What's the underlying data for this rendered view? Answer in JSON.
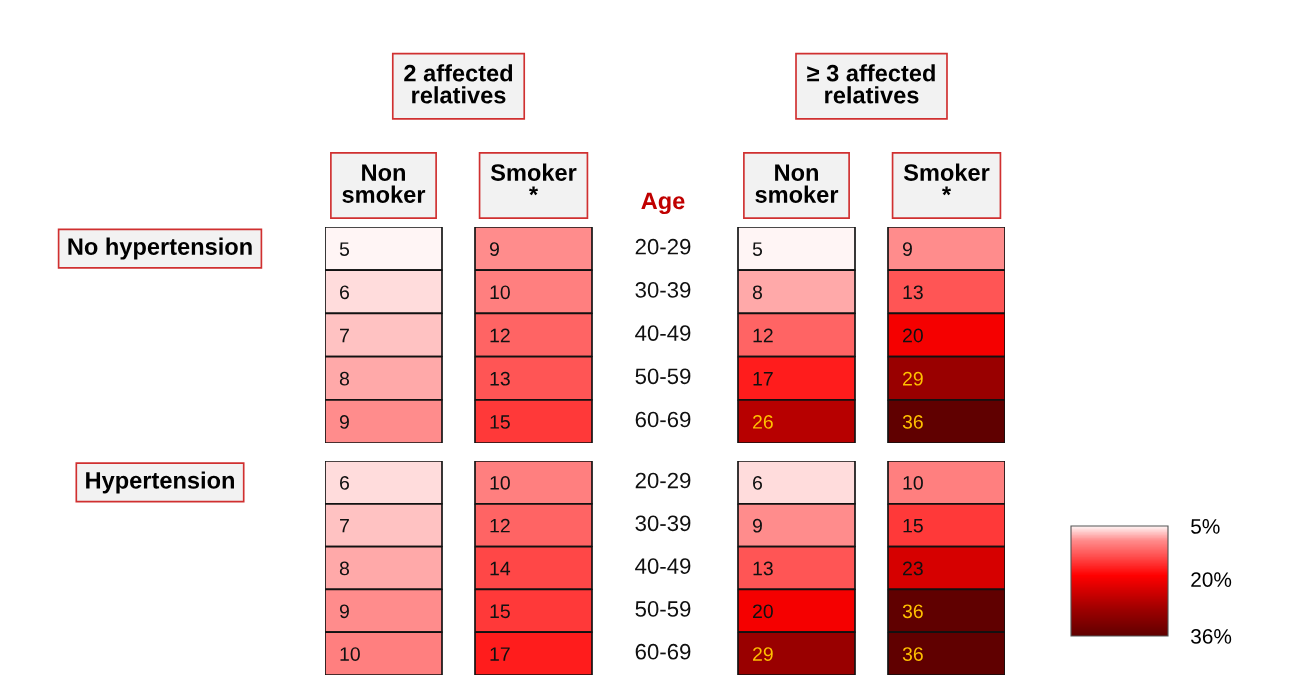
{
  "chart_data": [
    {
      "type": "heatmap",
      "ylabel": "No hypertension",
      "annotations": [
        "2 affected\nrelatives",
        "≥ 3 affected\nrelatives",
        "Age"
      ],
      "categories": [
        "Non\nsmoker",
        "Smoker\n*",
        "Non\nsmoker",
        "Smoker\n*"
      ],
      "y_categories": [
        "20-29",
        "30-39",
        "40-49",
        "50-59",
        "60-69"
      ],
      "cells": [
        [
          5,
          9,
          5,
          9
        ],
        [
          6,
          10,
          8,
          13
        ],
        [
          7,
          12,
          12,
          20
        ],
        [
          8,
          13,
          17,
          29
        ],
        [
          9,
          15,
          26,
          36
        ]
      ],
      "data_labels": true
    },
    {
      "type": "heatmap",
      "ylabel": "Hypertension",
      "categories": [
        "Non\nsmoker",
        "Smoker\n*",
        "Non\nsmoker",
        "Smoker\n*"
      ],
      "tick_labels": "y",
      "y_categories": [
        "20-29",
        "30-39",
        "40-49",
        "50-59",
        "60-69"
      ],
      "cells": [
        [
          6,
          10,
          6,
          10
        ],
        [
          7,
          12,
          9,
          15
        ],
        [
          8,
          14,
          13,
          23
        ],
        [
          9,
          15,
          20,
          36
        ],
        [
          10,
          17,
          29,
          36
        ]
      ],
      "data_labels": true,
      "clim": [
        5,
        36
      ],
      "cticks": [
        {
          "value": 5,
          "label": "5%"
        },
        {
          "value": 20,
          "label": "20%"
        },
        {
          "value": 36,
          "label": "36%"
        }
      ]
    }
  ]
}
